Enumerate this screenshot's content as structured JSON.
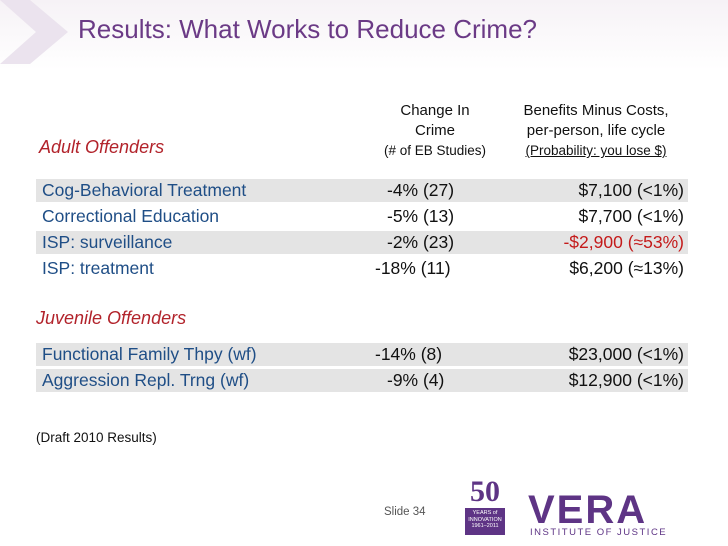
{
  "slide": {
    "title": "Results: What Works to Reduce Crime?",
    "slide_number": "Slide 34",
    "note": "(Draft 2010 Results)"
  },
  "columns": {
    "change": {
      "line1": "Change In",
      "line2": "Crime",
      "line3": "(# of EB Studies)"
    },
    "benefit": {
      "line1": "Benefits Minus Costs,",
      "line2": "per-person, life cycle",
      "line3": "(Probability: you lose $)"
    }
  },
  "sections": {
    "adult": {
      "label": "Adult Offenders",
      "rows": [
        {
          "program": "Cog-Behavioral Treatment",
          "change": "-4% (27)",
          "benefit": "$7,100  (<1%)"
        },
        {
          "program": "Correctional Education",
          "change": "-5% (13)",
          "benefit": "$7,700  (<1%)"
        },
        {
          "program": "ISP: surveillance",
          "change": "-2% (23)",
          "benefit": "-$2,900  (≈53%)"
        },
        {
          "program": "ISP: treatment",
          "change": "-18% (11)",
          "benefit": "$6,200  (≈13%)"
        }
      ]
    },
    "juvenile": {
      "label": "Juvenile Offenders",
      "rows": [
        {
          "program": "Functional Family Thpy (wf)",
          "change": "-14% (8)",
          "benefit": "$23,000  (<1%)"
        },
        {
          "program": "Aggression Repl. Trng (wf)",
          "change": "-9% (4)",
          "benefit": "$12,900  (<1%)"
        }
      ]
    }
  },
  "logos": {
    "anniversary": {
      "number": "50",
      "line1": "YEARS of",
      "line2": "INNOVATION",
      "line3": "1961–2011"
    },
    "vera": {
      "word": "VERA",
      "subtitle": "INSTITUTE OF JUSTICE"
    }
  },
  "colors": {
    "title": "#6b3a86",
    "section_label": "#b2232b",
    "program_text": "#1f4e86",
    "negative_value": "#c41a1a",
    "row_shade": "#e4e4e4",
    "brand_purple": "#5e3485"
  }
}
